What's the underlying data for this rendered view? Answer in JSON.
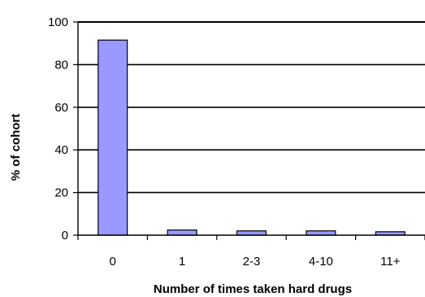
{
  "chart_data": {
    "type": "bar",
    "title": "",
    "xlabel": "Number of times taken hard drugs",
    "ylabel": "% of cohort",
    "categories": [
      "0",
      "1",
      "2-3",
      "4-10",
      "11+"
    ],
    "values": [
      91.5,
      2.4,
      2.0,
      2.0,
      1.6
    ],
    "ylim": [
      0,
      100
    ],
    "yticks": [
      0,
      20,
      40,
      60,
      80,
      100
    ],
    "grid": true,
    "legend": "none",
    "colors": {
      "bar_fill": "#9999ff",
      "bar_stroke": "#000000",
      "grid": "#000000",
      "axis": "#000000"
    }
  }
}
